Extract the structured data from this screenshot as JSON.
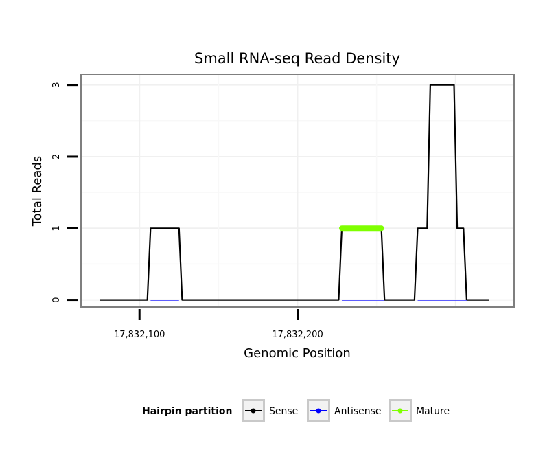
{
  "chart_data": {
    "type": "line",
    "title": "Small RNA-seq Read Density",
    "xlabel": "Genomic Position",
    "ylabel": "Total Reads",
    "xlim": [
      17832063,
      17832337
    ],
    "ylim": [
      -0.1,
      3.15
    ],
    "x_ticks": [
      {
        "value": 17832100,
        "label": "17,832,100"
      },
      {
        "value": 17832200,
        "label": "17,832,200"
      }
    ],
    "y_ticks": [
      {
        "value": 0,
        "label": "0"
      },
      {
        "value": 1,
        "label": "1"
      },
      {
        "value": 2,
        "label": "2"
      },
      {
        "value": 3,
        "label": "3"
      }
    ],
    "grid": true,
    "legend": {
      "title": "Hairpin partition",
      "position": "bottom"
    },
    "series": [
      {
        "name": "Sense",
        "color": "#000000",
        "x": [
          17832075,
          17832105,
          17832107,
          17832125,
          17832127,
          17832226,
          17832228,
          17832253,
          17832255,
          17832274,
          17832276,
          17832282,
          17832284,
          17832299,
          17832301,
          17832305,
          17832307,
          17832321
        ],
        "y": [
          0,
          0,
          1,
          1,
          0,
          0,
          1,
          1,
          0,
          0,
          1,
          1,
          3,
          3,
          1,
          1,
          0,
          0
        ]
      },
      {
        "name": "Antisense",
        "color": "#0000ff",
        "x": [
          17832107,
          17832125,
          17832228,
          17832255,
          17832276,
          17832307
        ],
        "y": [
          0,
          0,
          0,
          0,
          0,
          0
        ],
        "segments": [
          [
            17832107,
            17832125
          ],
          [
            17832228,
            17832255
          ],
          [
            17832276,
            17832307
          ]
        ]
      },
      {
        "name": "Mature",
        "color": "#7fff00",
        "x": [
          17832228,
          17832236,
          17832244,
          17832253
        ],
        "y": [
          1,
          1,
          1,
          1
        ]
      }
    ]
  }
}
